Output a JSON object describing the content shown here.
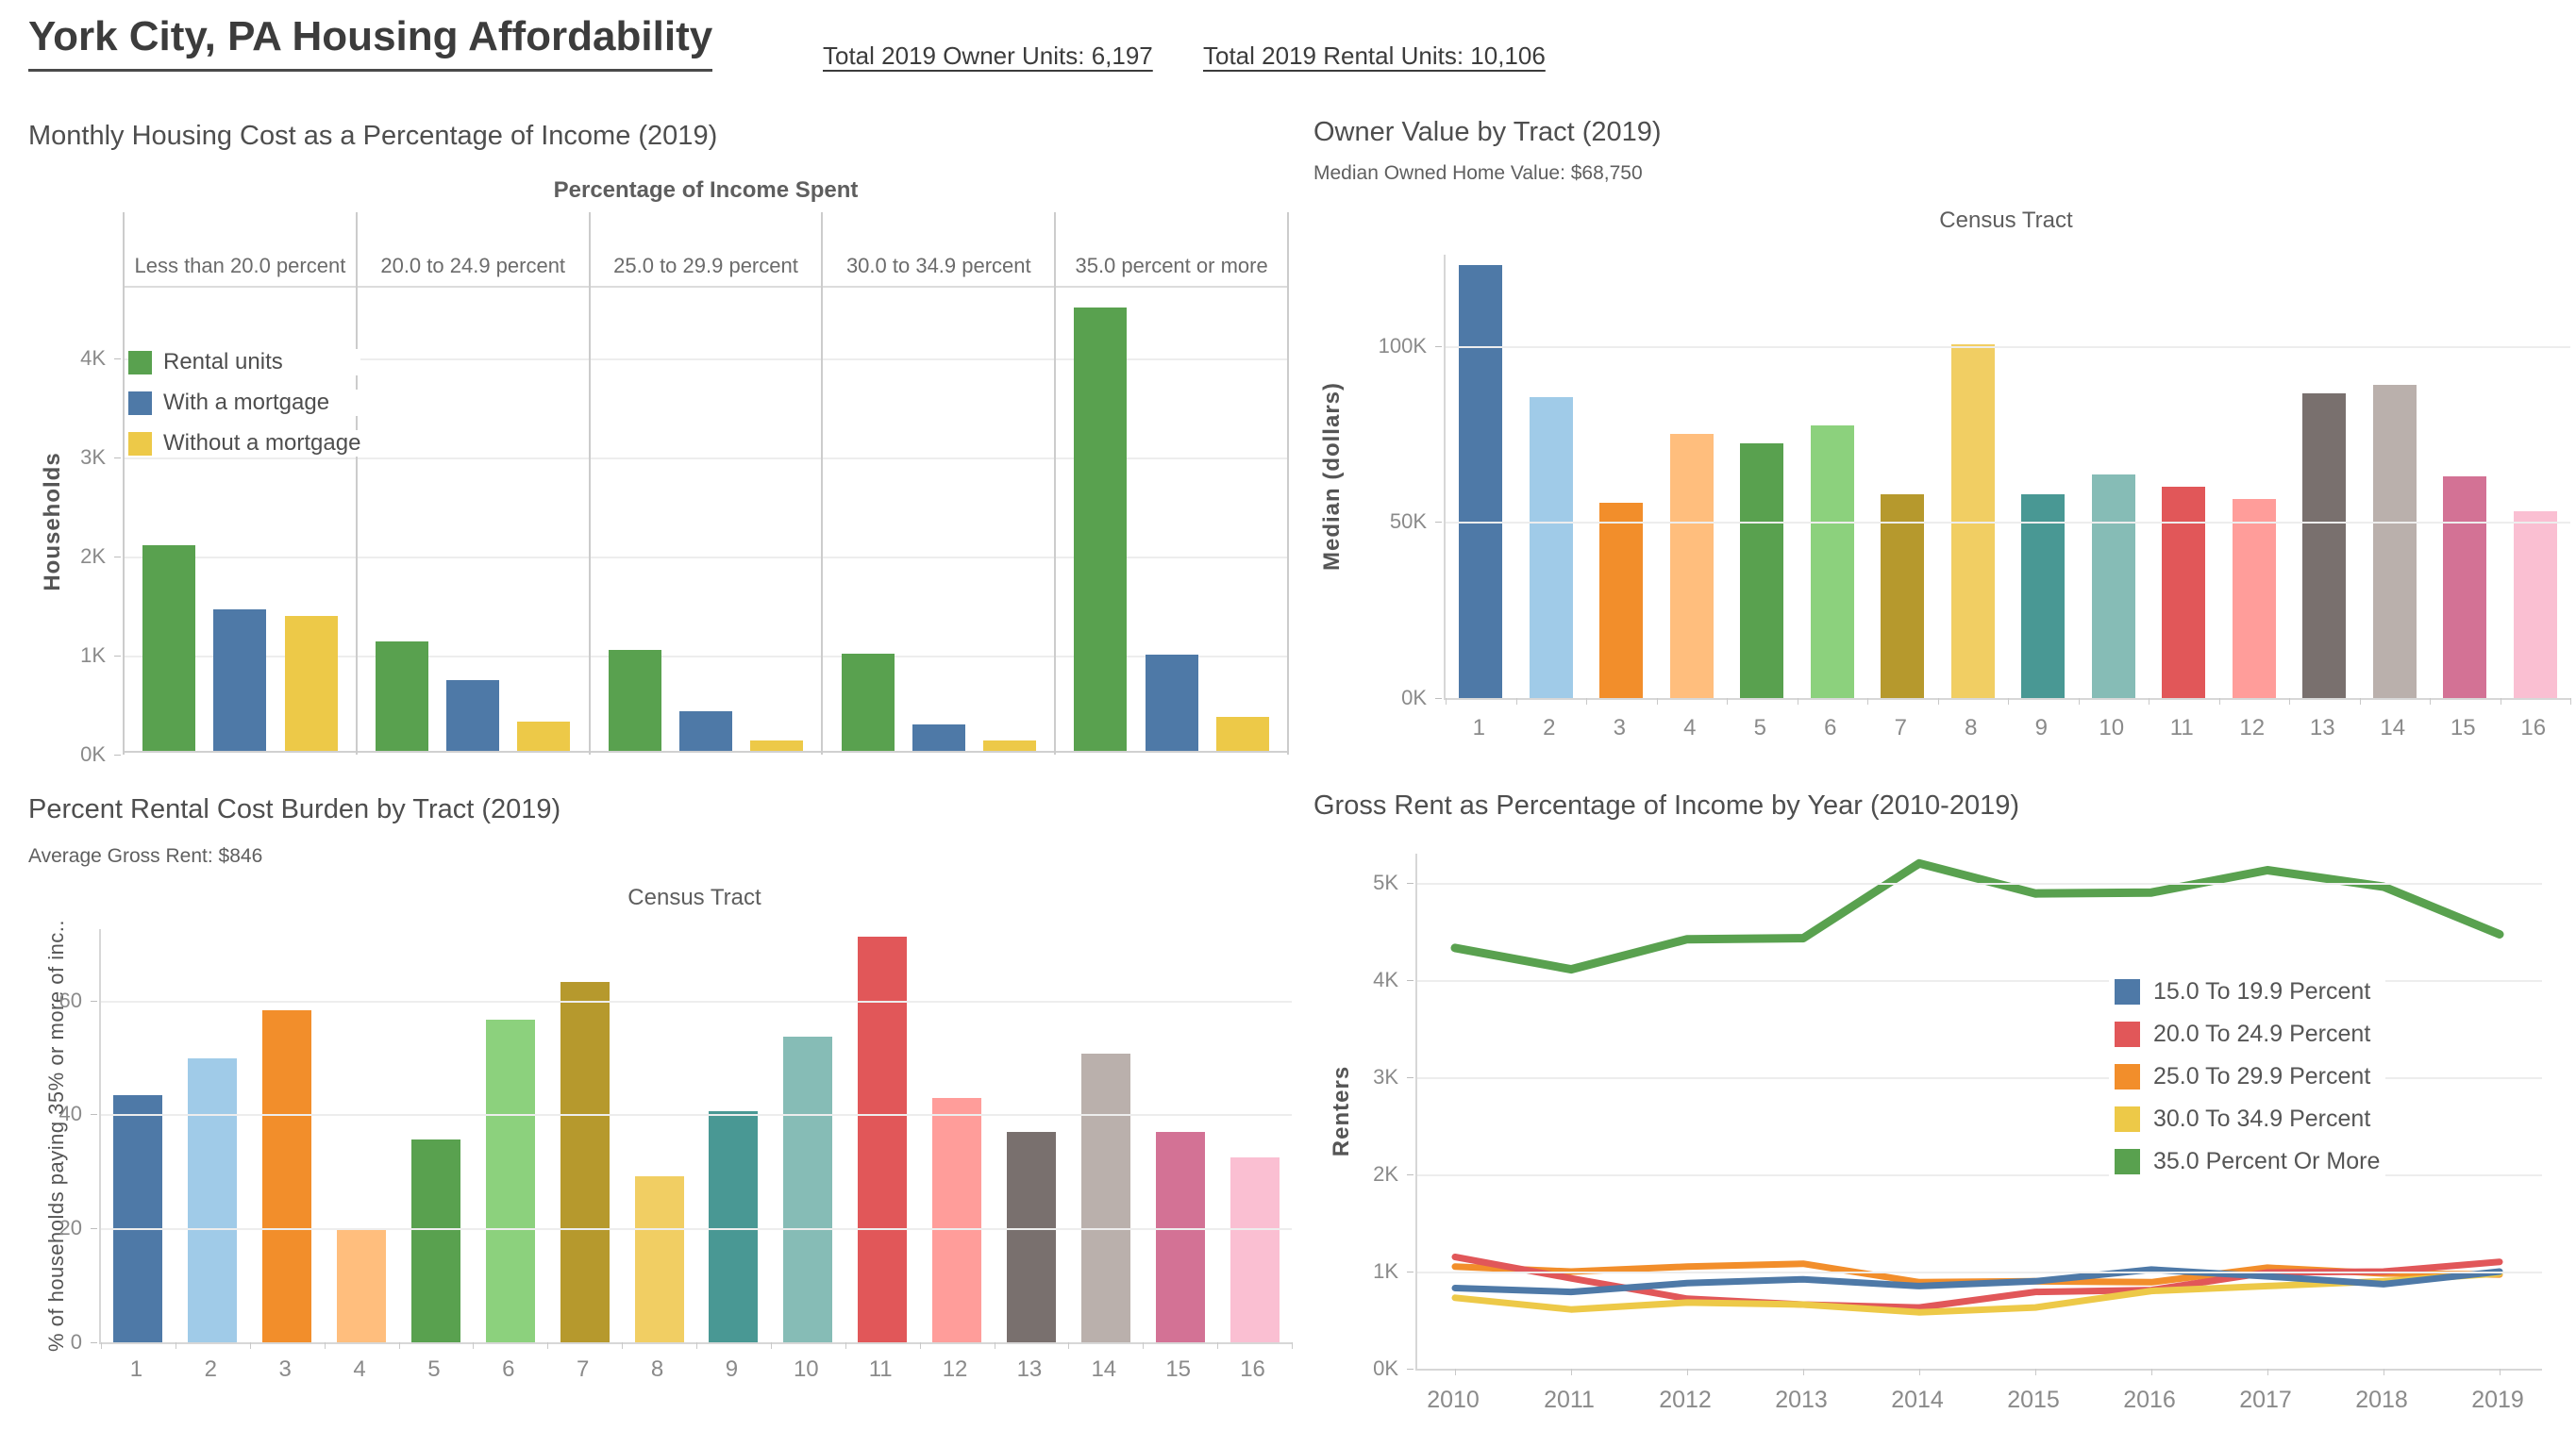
{
  "header": {
    "title": "York City, PA Housing Affordability",
    "kpi_owner": "Total 2019 Owner Units: 6,197",
    "kpi_rental": "Total 2019 Rental Units: 10,106"
  },
  "colors": {
    "accent_green": "#59A14F",
    "accent_blue": "#4E79A7",
    "accent_yellow": "#EDC948",
    "accent_red": "#E15759",
    "accent_orange": "#F28E2B",
    "gridline": "#ededed",
    "axis_line": "#d0d0d0",
    "axis_text": "#8a8a8a",
    "title_text": "#4e4e4e"
  },
  "tract_palette": [
    "#4E79A7",
    "#A0CBE8",
    "#F28E2B",
    "#FFBE7D",
    "#59A14F",
    "#8CD17D",
    "#B6992D",
    "#F1CE63",
    "#499894",
    "#86BCB6",
    "#E15759",
    "#FF9D9A",
    "#79706E",
    "#BAB0AC",
    "#D37295",
    "#FABFD2"
  ],
  "chart_data": [
    {
      "id": "monthly-housing-cost",
      "type": "bar",
      "title": "Monthly Housing Cost as a Percentage of Income (2019)",
      "axis_header": "Percentage of Income Spent",
      "ylabel": "Households",
      "ylim": [
        0,
        4700
      ],
      "yticks_values": [
        0,
        1000,
        2000,
        3000,
        4000
      ],
      "yticks_labels": [
        "0K",
        "1K",
        "2K",
        "3K",
        "4K"
      ],
      "categories": [
        "Less than 20.0 percent",
        "20.0 to 24.9 percent",
        "25.0 to 29.9 percent",
        "30.0 to 34.9 percent",
        "35.0 percent or more"
      ],
      "series": [
        {
          "name": "Rental units",
          "color": "#59A14F",
          "values": [
            2080,
            1110,
            1020,
            980,
            4480
          ]
        },
        {
          "name": "With a mortgage",
          "color": "#4E79A7",
          "values": [
            1430,
            720,
            400,
            270,
            970
          ]
        },
        {
          "name": "Without a mortgage",
          "color": "#EDC948",
          "values": [
            1360,
            300,
            110,
            110,
            340
          ]
        }
      ],
      "legend_position": "upper-left",
      "grid": true
    },
    {
      "id": "owner-value-by-tract",
      "type": "bar",
      "title": "Owner Value by Tract (2019)",
      "subtitle": "Median Owned Home Value: $68,750",
      "axis_header": "Census Tract",
      "ylabel": "Median (dollars)",
      "ylim": [
        0,
        126000
      ],
      "yticks_values": [
        0,
        50000,
        100000
      ],
      "yticks_labels": [
        "0K",
        "50K",
        "100K"
      ],
      "categories": [
        "1",
        "2",
        "3",
        "4",
        "5",
        "6",
        "7",
        "8",
        "9",
        "10",
        "11",
        "12",
        "13",
        "14",
        "15",
        "16"
      ],
      "values": [
        123000,
        85500,
        55500,
        75000,
        72500,
        77500,
        58000,
        100500,
        58000,
        63500,
        60000,
        56500,
        86500,
        89000,
        63000,
        53000
      ],
      "grid": true
    },
    {
      "id": "rental-cost-burden-by-tract",
      "type": "bar",
      "title": "Percent Rental Cost Burden by Tract (2019)",
      "subtitle": "Average Gross Rent: $846",
      "axis_header": "Census Tract",
      "ylabel": "% of households paying 35% or more of inc..",
      "ylim": [
        0,
        72.5
      ],
      "yticks_values": [
        0,
        20,
        40,
        60
      ],
      "yticks_labels": [
        "0",
        "20",
        "40",
        "60"
      ],
      "categories": [
        "1",
        "2",
        "3",
        "4",
        "5",
        "6",
        "7",
        "8",
        "9",
        "10",
        "11",
        "12",
        "13",
        "14",
        "15",
        "16"
      ],
      "values": [
        43.4,
        49.8,
        58.2,
        20.0,
        35.6,
        56.7,
        63.3,
        29.2,
        40.5,
        53.6,
        71.2,
        42.8,
        37.0,
        50.7,
        36.9,
        32.5
      ],
      "grid": true
    },
    {
      "id": "gross-rent-pct-income-by-year",
      "type": "line",
      "title": "Gross Rent as Percentage of Income by Year (2010-2019)",
      "ylabel": "Renters",
      "ylim": [
        0,
        5300
      ],
      "yticks_values": [
        0,
        1000,
        2000,
        3000,
        4000,
        5000
      ],
      "yticks_labels": [
        "0K",
        "1K",
        "2K",
        "3K",
        "4K",
        "5K"
      ],
      "x": [
        "2010",
        "2011",
        "2012",
        "2013",
        "2014",
        "2015",
        "2016",
        "2017",
        "2018",
        "2019"
      ],
      "series": [
        {
          "name": "15.0 To 19.9 Percent",
          "color": "#4E79A7",
          "values": [
            830,
            790,
            880,
            920,
            850,
            900,
            1020,
            950,
            870,
            1000
          ]
        },
        {
          "name": "20.0 To 24.9 Percent",
          "color": "#E15759",
          "values": [
            1150,
            930,
            720,
            660,
            630,
            790,
            810,
            990,
            1000,
            1100
          ]
        },
        {
          "name": "25.0 To 29.9 Percent",
          "color": "#F28E2B",
          "values": [
            1050,
            1000,
            1050,
            1080,
            890,
            900,
            890,
            1040,
            980,
            970
          ]
        },
        {
          "name": "30.0 To 34.9 Percent",
          "color": "#EDC948",
          "values": [
            730,
            610,
            680,
            660,
            580,
            630,
            800,
            850,
            900,
            980
          ]
        },
        {
          "name": "35.0 Percent Or More",
          "color": "#59A14F",
          "values": [
            4330,
            4110,
            4420,
            4430,
            5200,
            4890,
            4900,
            5130,
            4960,
            4470
          ]
        }
      ],
      "legend_position": "middle-right",
      "grid": true
    }
  ]
}
